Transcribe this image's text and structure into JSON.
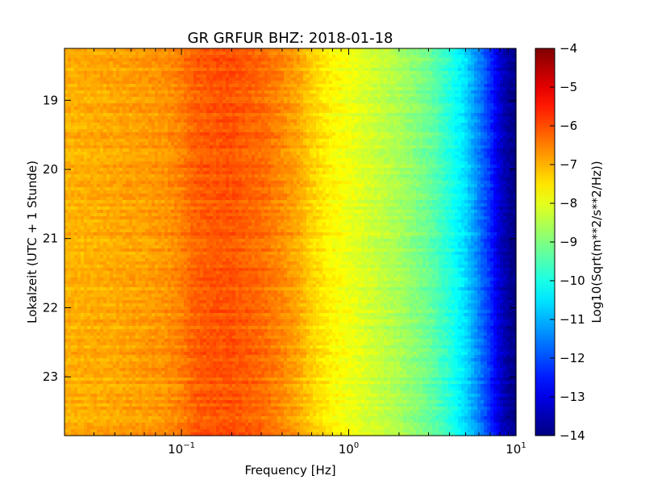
{
  "chart_data": {
    "type": "heatmap",
    "title": "GR GRFUR BHZ: 2018-01-18",
    "xlabel": "Frequency [Hz]",
    "ylabel": "Lokalzeit (UTC + 1 Stunde)",
    "x_scale": "log",
    "xlim": [
      0.02,
      10
    ],
    "x_ticks": [
      {
        "value": 0.1,
        "label_base": "10",
        "label_exp": "−1"
      },
      {
        "value": 1,
        "label_base": "10",
        "label_exp": "0"
      },
      {
        "value": 10,
        "label_base": "10",
        "label_exp": "1"
      }
    ],
    "ylim": [
      18.25,
      23.85
    ],
    "y_inverted": true,
    "y_ticks": [
      {
        "value": 19,
        "label": "19"
      },
      {
        "value": 20,
        "label": "20"
      },
      {
        "value": 21,
        "label": "21"
      },
      {
        "value": 22,
        "label": "22"
      },
      {
        "value": 23,
        "label": "23"
      }
    ],
    "colorbar": {
      "label": "Log10(Sqrt(m**2/s**2/Hz))",
      "range": [
        -14,
        -4
      ],
      "colormap": "jet",
      "ticks": [
        {
          "value": -4,
          "label": "−4"
        },
        {
          "value": -5,
          "label": "−5"
        },
        {
          "value": -6,
          "label": "−6"
        },
        {
          "value": -7,
          "label": "−7"
        },
        {
          "value": -8,
          "label": "−8"
        },
        {
          "value": -9,
          "label": "−9"
        },
        {
          "value": -10,
          "label": "−10"
        },
        {
          "value": -11,
          "label": "−11"
        },
        {
          "value": -12,
          "label": "−12"
        },
        {
          "value": -13,
          "label": "−13"
        },
        {
          "value": -14,
          "label": "−14"
        }
      ]
    },
    "spectrum_profile": {
      "frequency_hz": [
        0.02,
        0.04,
        0.06,
        0.08,
        0.1,
        0.12,
        0.15,
        0.2,
        0.3,
        0.4,
        0.5,
        0.6,
        0.8,
        1.0,
        1.5,
        2.0,
        3.0,
        4.0,
        5.0,
        6.0,
        7.0,
        8.0,
        9.0,
        10.0
      ],
      "value": [
        -7.0,
        -6.9,
        -6.8,
        -6.7,
        -6.5,
        -6.2,
        -6.1,
        -6.05,
        -6.3,
        -6.6,
        -6.9,
        -7.3,
        -7.7,
        -7.9,
        -8.3,
        -8.6,
        -9.2,
        -9.9,
        -10.6,
        -11.5,
        -12.3,
        -13.2,
        -13.7,
        -14.0
      ]
    }
  }
}
